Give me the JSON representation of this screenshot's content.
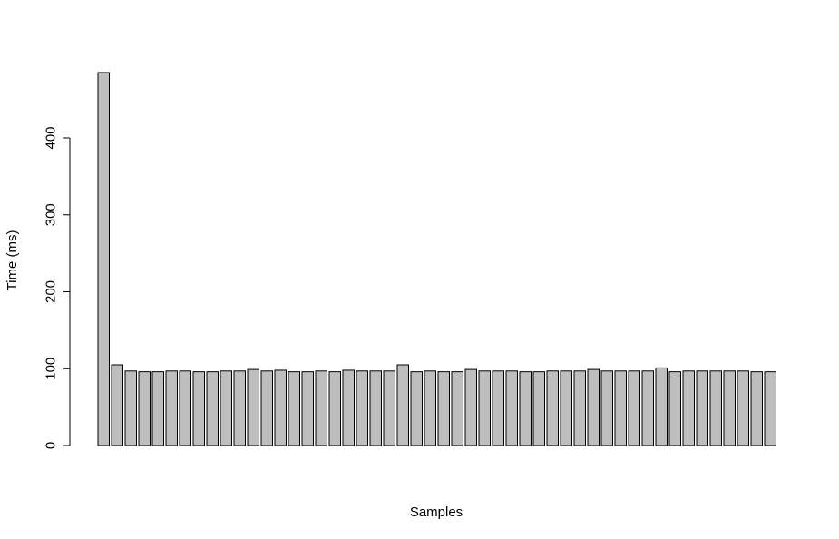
{
  "chart_data": {
    "type": "bar",
    "xlabel": "Samples",
    "ylabel": "Time (ms)",
    "yticks": [
      0,
      100,
      200,
      300,
      400
    ],
    "ylim": [
      0,
      500
    ],
    "bar_color": "#bebebe",
    "values": [
      485,
      105,
      97,
      96,
      96,
      97,
      97,
      96,
      96,
      97,
      97,
      99,
      97,
      98,
      96,
      96,
      97,
      96,
      98,
      97,
      97,
      97,
      105,
      96,
      97,
      96,
      96,
      99,
      97,
      97,
      97,
      96,
      96,
      97,
      97,
      97,
      99,
      97,
      97,
      97,
      97,
      101,
      96,
      97,
      97,
      97,
      97,
      97,
      96,
      96
    ]
  }
}
